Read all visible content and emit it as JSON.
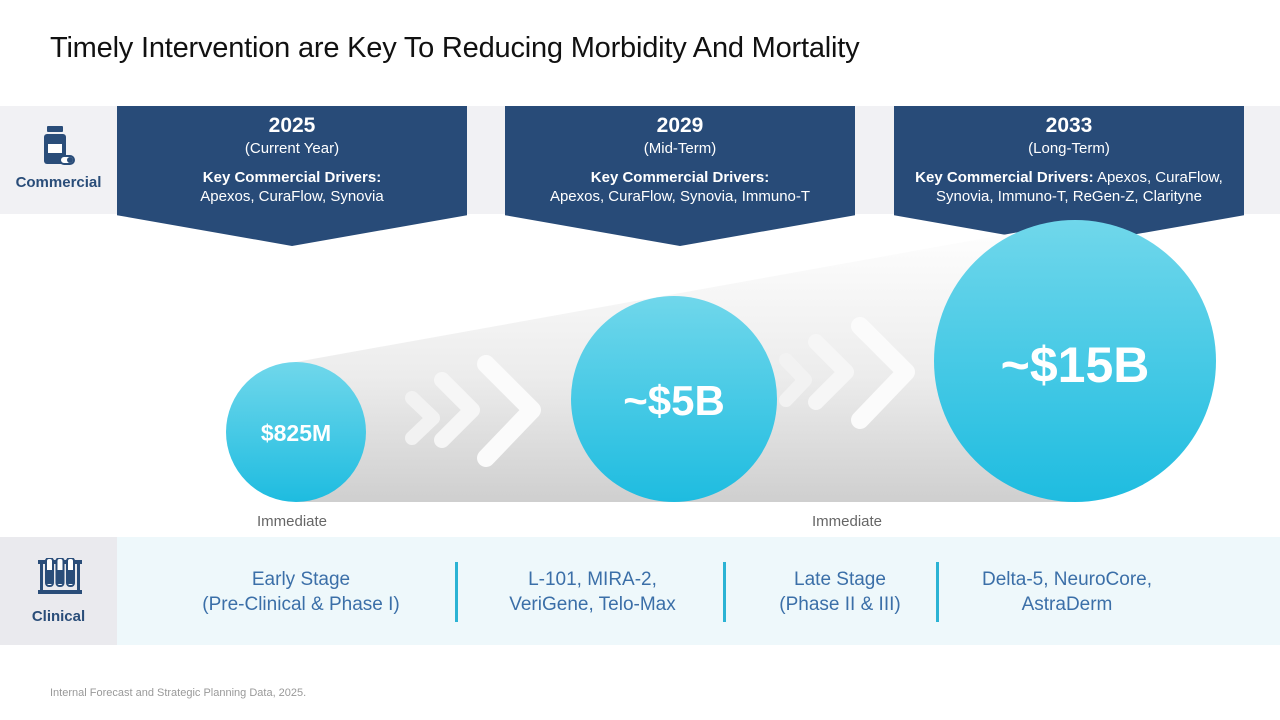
{
  "title": "Timely Intervention are Key To Reducing Morbidity And Mortality",
  "rows": {
    "commercial_label": "Commercial",
    "clinical_label": "Clinical"
  },
  "milestones": [
    {
      "year": "2025",
      "sub": "(Current Year)",
      "drivers_label": "Key Commercial Drivers:",
      "drivers": "Apexos, CuraFlow, Synovia"
    },
    {
      "year": "2029",
      "sub": "(Mid-Term)",
      "drivers_label": "Key Commercial Drivers:",
      "drivers": "Apexos, CuraFlow, Synovia, Immuno-T"
    },
    {
      "year": "2033",
      "sub": "(Long-Term)",
      "drivers_label": "Key Commercial Drivers:",
      "drivers_inline": "Apexos, CuraFlow,",
      "drivers_rest": "Synovia, Immuno-T, ReGen-Z, Clarityne"
    }
  ],
  "values": [
    {
      "label": "$825M",
      "value_usd_b": 0.825
    },
    {
      "label": "~$5B",
      "value_usd_b": 5
    },
    {
      "label": "~$15B",
      "value_usd_b": 15
    }
  ],
  "immediate_labels": [
    "Immediate",
    "Immediate"
  ],
  "clinical": [
    {
      "line1": "Early Stage",
      "line2": "(Pre-Clinical & Phase I)"
    },
    {
      "line1": "L-101, MIRA-2,",
      "line2": "VeriGene, Telo-Max"
    },
    {
      "line1": "Late Stage",
      "line2": "(Phase II & III)"
    },
    {
      "line1": "Delta-5, NeuroCore,",
      "line2": "AstraDerm"
    }
  ],
  "footer": "Internal Forecast and Strategic Planning Data, 2025.",
  "colors": {
    "navy": "#284b78",
    "teal_light": "#6dd6ea",
    "teal_dark": "#22bde0",
    "label_blue": "#2a4d79",
    "stage_blue": "#3b6fa8"
  }
}
